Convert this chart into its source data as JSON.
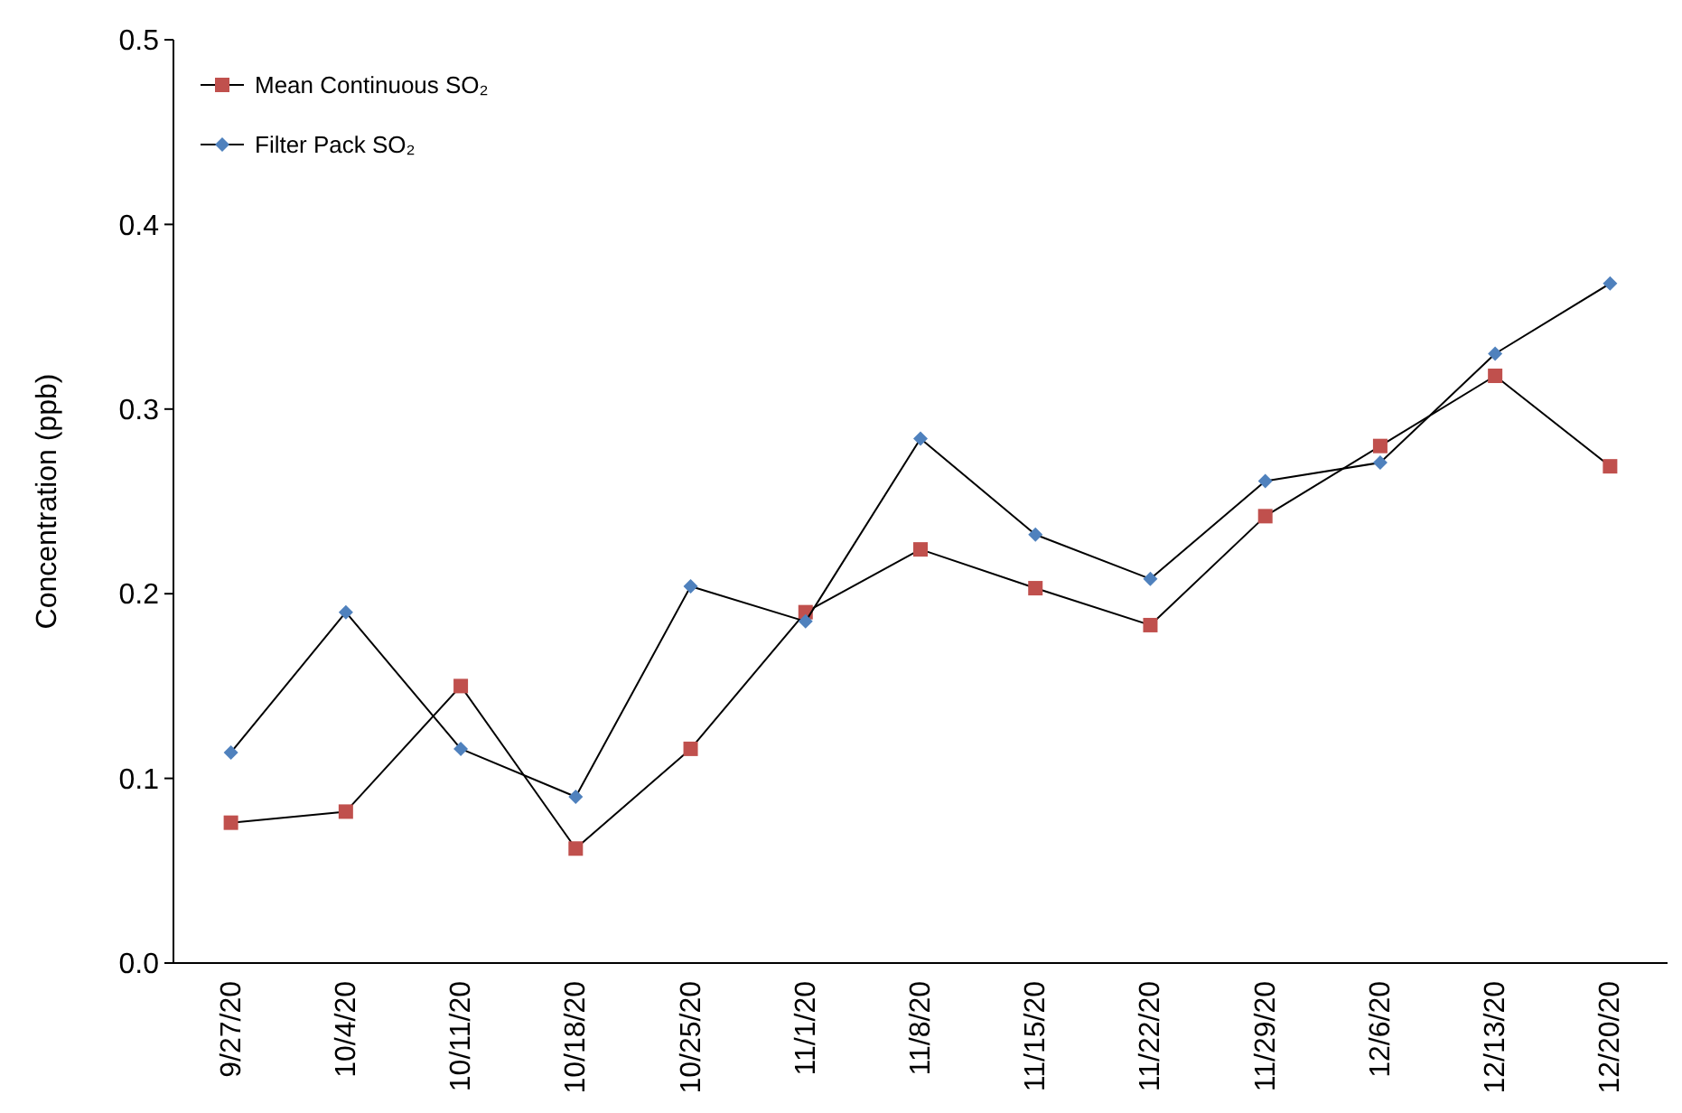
{
  "chart_data": {
    "type": "line",
    "ylabel": "Concentration (ppb)",
    "categories": [
      "9/27/20",
      "10/4/20",
      "10/11/20",
      "10/18/20",
      "10/25/20",
      "11/1/20",
      "11/8/20",
      "11/15/20",
      "11/22/20",
      "11/29/20",
      "12/6/20",
      "12/13/20",
      "12/20/20"
    ],
    "series": [
      {
        "name": "Mean Continuous SO₂",
        "color": "#c0504d",
        "marker": "square",
        "values": [
          0.076,
          0.082,
          0.15,
          0.062,
          0.116,
          0.19,
          0.224,
          0.203,
          0.183,
          0.242,
          0.28,
          0.318,
          0.269
        ]
      },
      {
        "name": "Filter Pack SO₂",
        "color": "#4f81bd",
        "marker": "diamond",
        "values": [
          0.114,
          0.19,
          0.116,
          0.09,
          0.204,
          0.185,
          0.284,
          0.232,
          0.208,
          0.261,
          0.271,
          0.33,
          0.368
        ]
      }
    ],
    "ylim": [
      0,
      0.5
    ],
    "yticks": [
      {
        "value": 0,
        "label": "0.0"
      },
      0.1,
      0.2,
      0.3,
      0.4,
      0.5
    ],
    "legend": "top left",
    "grid": false,
    "line_style": "solid"
  }
}
